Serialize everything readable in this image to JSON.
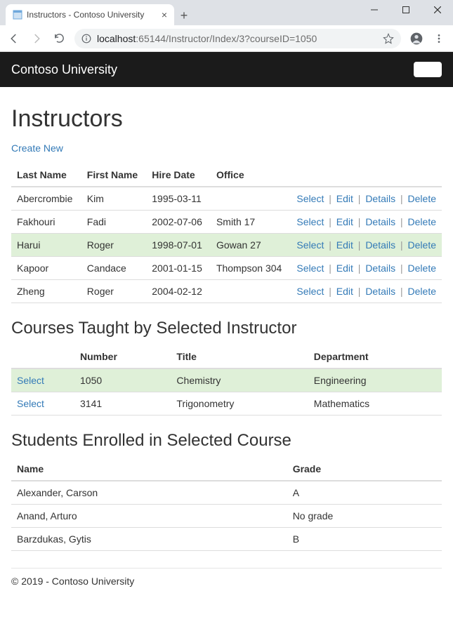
{
  "browser": {
    "tab_title": "Instructors - Contoso University",
    "url_host": "localhost",
    "url_port": ":65144",
    "url_path": "/Instructor/Index/3?courseID=1050"
  },
  "navbar": {
    "brand": "Contoso University"
  },
  "colors": {
    "link": "#337ab7",
    "highlight_bg": "#dff0d8",
    "navbar_bg": "#1b1b1b",
    "border": "#dddddd"
  },
  "page": {
    "title": "Instructors",
    "create_link": "Create New"
  },
  "instructors": {
    "headers": {
      "last_name": "Last Name",
      "first_name": "First Name",
      "hire_date": "Hire Date",
      "office": "Office"
    },
    "action_labels": {
      "select": "Select",
      "edit": "Edit",
      "details": "Details",
      "delete": "Delete"
    },
    "rows": [
      {
        "last_name": "Abercrombie",
        "first_name": "Kim",
        "hire_date": "1995-03-11",
        "office": "",
        "selected": false
      },
      {
        "last_name": "Fakhouri",
        "first_name": "Fadi",
        "hire_date": "2002-07-06",
        "office": "Smith 17",
        "selected": false
      },
      {
        "last_name": "Harui",
        "first_name": "Roger",
        "hire_date": "1998-07-01",
        "office": "Gowan 27",
        "selected": true
      },
      {
        "last_name": "Kapoor",
        "first_name": "Candace",
        "hire_date": "2001-01-15",
        "office": "Thompson 304",
        "selected": false
      },
      {
        "last_name": "Zheng",
        "first_name": "Roger",
        "hire_date": "2004-02-12",
        "office": "",
        "selected": false
      }
    ]
  },
  "courses": {
    "heading": "Courses Taught by Selected Instructor",
    "headers": {
      "number": "Number",
      "title": "Title",
      "department": "Department"
    },
    "select_label": "Select",
    "rows": [
      {
        "number": "1050",
        "title": "Chemistry",
        "department": "Engineering",
        "selected": true
      },
      {
        "number": "3141",
        "title": "Trigonometry",
        "department": "Mathematics",
        "selected": false
      }
    ]
  },
  "students": {
    "heading": "Students Enrolled in Selected Course",
    "headers": {
      "name": "Name",
      "grade": "Grade"
    },
    "rows": [
      {
        "name": "Alexander, Carson",
        "grade": "A"
      },
      {
        "name": "Anand, Arturo",
        "grade": "No grade"
      },
      {
        "name": "Barzdukas, Gytis",
        "grade": "B"
      }
    ]
  },
  "footer": {
    "text": "© 2019 - Contoso University"
  }
}
